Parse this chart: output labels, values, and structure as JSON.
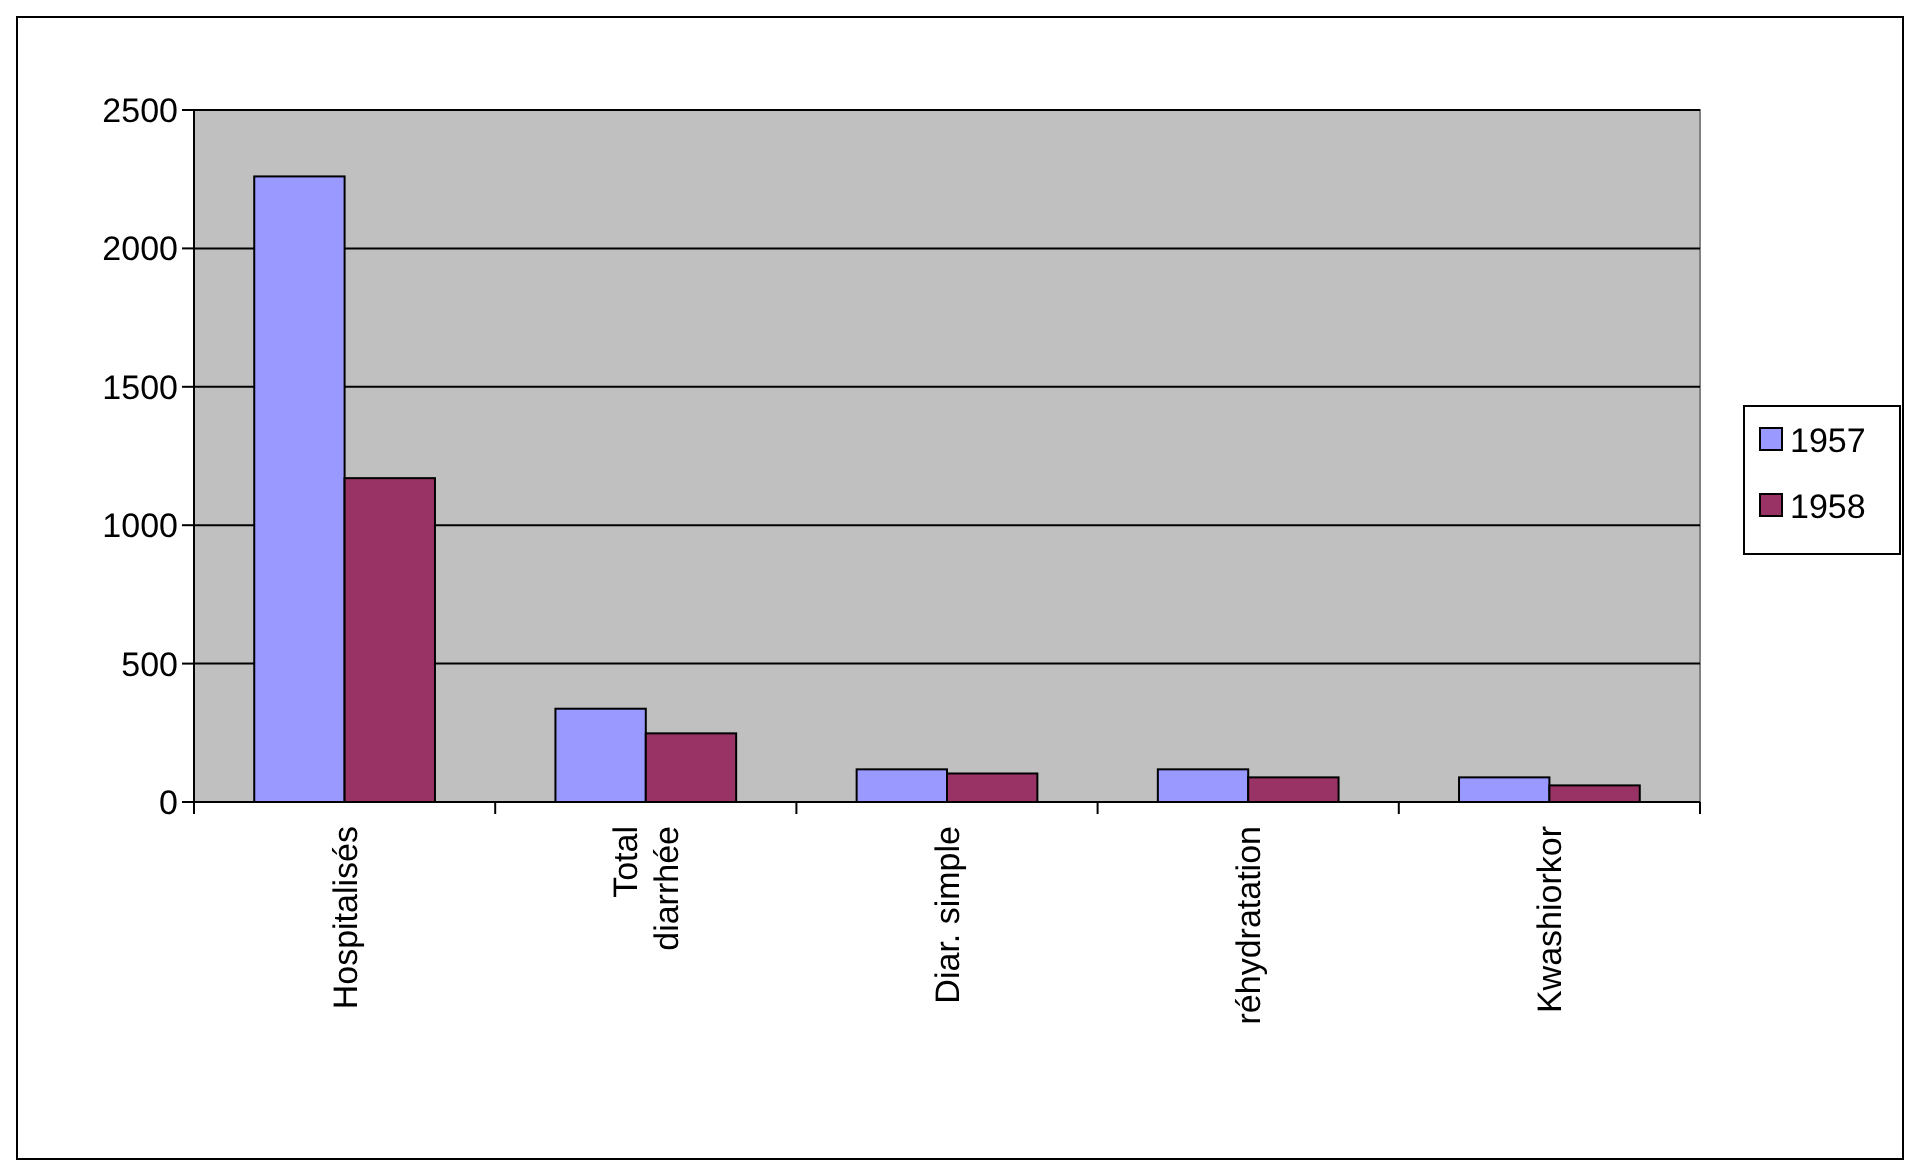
{
  "chart_data": {
    "type": "bar",
    "categories": [
      "Hospitalisés",
      "Total\ndiarrhée",
      "Diar. simple",
      "réhydratation",
      "Kwashiorkor"
    ],
    "series": [
      {
        "name": "1957",
        "color": "#9999ff",
        "values": [
          2260,
          337,
          118,
          118,
          89
        ]
      },
      {
        "name": "1958",
        "color": "#993366",
        "values": [
          1170,
          248,
          103,
          89,
          60
        ]
      }
    ],
    "ylim": [
      0,
      2500
    ],
    "yticks": [
      0,
      500,
      1000,
      1500,
      2000,
      2500
    ],
    "grid": "y",
    "legend": "right"
  }
}
